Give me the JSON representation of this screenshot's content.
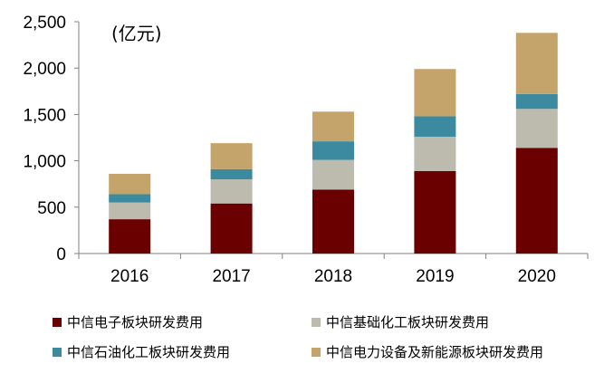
{
  "chart_data": {
    "type": "bar",
    "stacked": true,
    "unit_label": "(亿元)",
    "categories": [
      "2016",
      "2017",
      "2018",
      "2019",
      "2020"
    ],
    "ylim": [
      0,
      2500
    ],
    "yticks": [
      "0",
      "500",
      "1,000",
      "1,500",
      "2,000",
      "2,500"
    ],
    "ytick_values": [
      0,
      500,
      1000,
      1500,
      2000,
      2500
    ],
    "grid": false,
    "legend_position": "bottom",
    "series": [
      {
        "name": "中信电子板块研发费用",
        "color": "#6b0000",
        "values": [
          370,
          540,
          690,
          890,
          1140
        ]
      },
      {
        "name": "中信基础化工板块研发费用",
        "color": "#bdbbae",
        "values": [
          180,
          260,
          320,
          370,
          420
        ]
      },
      {
        "name": "中信石油化工板块研发费用",
        "color": "#3c8aa0",
        "values": [
          90,
          110,
          200,
          220,
          160
        ]
      },
      {
        "name": "中信电力设备及新能源板块研发费用",
        "color": "#c4a46a",
        "values": [
          220,
          280,
          320,
          510,
          660
        ]
      }
    ]
  }
}
